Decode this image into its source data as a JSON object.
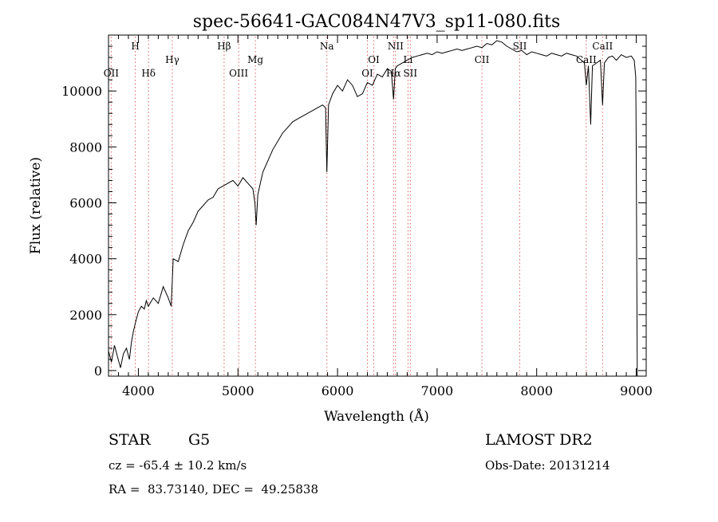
{
  "chart_data": {
    "type": "line",
    "title": "spec-56641-GAC084N47V3_sp11-080.fits",
    "xlabel": "Wavelength (Å)",
    "ylabel": "Flux (relative)",
    "xlim": [
      3700,
      9100
    ],
    "ylim": [
      -200,
      12000
    ],
    "x_ticks": [
      4000,
      5000,
      6000,
      7000,
      8000,
      9000
    ],
    "y_ticks": [
      0,
      2000,
      4000,
      6000,
      8000,
      10000
    ],
    "x_tick_labels": [
      "4000",
      "5000",
      "6000",
      "7000",
      "8000",
      "9000"
    ],
    "y_tick_labels": [
      "0",
      "2000",
      "4000",
      "6000",
      "8000",
      "10000"
    ],
    "grid": false,
    "series": [
      {
        "x": [
          3700,
          3730,
          3760,
          3790,
          3820,
          3850,
          3880,
          3910,
          3930,
          3950,
          3970,
          4000,
          4030,
          4060,
          4080,
          4100,
          4150,
          4200,
          4250,
          4300,
          4330,
          4350,
          4400,
          4450,
          4500,
          4550,
          4600,
          4650,
          4700,
          4750,
          4800,
          4850,
          4900,
          4950,
          5000,
          5050,
          5100,
          5150,
          5170,
          5183,
          5200,
          5250,
          5300,
          5350,
          5400,
          5450,
          5500,
          5550,
          5600,
          5650,
          5700,
          5750,
          5800,
          5850,
          5880,
          5893,
          5910,
          5950,
          6000,
          6050,
          6100,
          6150,
          6200,
          6250,
          6300,
          6350,
          6400,
          6450,
          6500,
          6540,
          6563,
          6580,
          6600,
          6650,
          6700,
          6750,
          6800,
          6850,
          6900,
          6950,
          7000,
          7050,
          7100,
          7150,
          7200,
          7250,
          7300,
          7350,
          7400,
          7450,
          7500,
          7550,
          7600,
          7650,
          7700,
          7750,
          7800,
          7850,
          7900,
          7950,
          8000,
          8050,
          8100,
          8150,
          8200,
          8250,
          8300,
          8350,
          8400,
          8450,
          8480,
          8498,
          8520,
          8542,
          8560,
          8600,
          8640,
          8662,
          8680,
          8720,
          8760,
          8800,
          8850,
          8900,
          8950,
          8980,
          8995,
          9000,
          9010
        ],
        "y": [
          700,
          300,
          900,
          500,
          100,
          600,
          800,
          400,
          1000,
          1400,
          1700,
          2100,
          2300,
          2200,
          2500,
          2300,
          2600,
          2400,
          3000,
          2600,
          2300,
          4000,
          3900,
          4500,
          5000,
          5300,
          5700,
          5900,
          6100,
          6200,
          6500,
          6600,
          6700,
          6800,
          6600,
          6900,
          6700,
          6500,
          6000,
          5200,
          6300,
          7100,
          7500,
          7900,
          8200,
          8500,
          8700,
          8900,
          9000,
          9100,
          9200,
          9300,
          9400,
          9500,
          9400,
          7100,
          9500,
          9900,
          10200,
          10000,
          10400,
          10200,
          9800,
          9900,
          10300,
          10200,
          10600,
          10500,
          10800,
          10700,
          9700,
          10800,
          10900,
          11000,
          11100,
          11200,
          11250,
          11300,
          11350,
          11300,
          11400,
          11350,
          11400,
          11450,
          11500,
          11450,
          11500,
          11550,
          11600,
          11550,
          11700,
          11650,
          11800,
          11750,
          11600,
          11500,
          11400,
          11450,
          11300,
          11400,
          11350,
          11300,
          11250,
          11350,
          11300,
          11250,
          11350,
          11300,
          11250,
          11100,
          11000,
          10200,
          10900,
          8800,
          10900,
          11000,
          11100,
          9500,
          11000,
          11200,
          11250,
          11100,
          11300,
          11200,
          11250,
          11100,
          10500,
          8000,
          -200
        ]
      }
    ],
    "spectral_lines": [
      {
        "label": "H",
        "wavelength": 3969,
        "level": "top"
      },
      {
        "label": "OII",
        "wavelength": 3727,
        "level": "low"
      },
      {
        "label": "Hδ",
        "wavelength": 4102,
        "level": "low"
      },
      {
        "label": "Hγ",
        "wavelength": 4341,
        "level": "mid"
      },
      {
        "label": "Hβ",
        "wavelength": 4861,
        "level": "top"
      },
      {
        "label": "OIII",
        "wavelength": 5007,
        "level": "low"
      },
      {
        "label": "Mg",
        "wavelength": 5175,
        "level": "mid"
      },
      {
        "label": "Na",
        "wavelength": 5893,
        "level": "top"
      },
      {
        "label": "OI",
        "wavelength": 6300,
        "level": "low"
      },
      {
        "label": "OI",
        "wavelength": 6364,
        "level": "mid"
      },
      {
        "label": "NII",
        "wavelength": 6583,
        "level": "top"
      },
      {
        "label": "Hα",
        "wavelength": 6563,
        "level": "low"
      },
      {
        "label": "Li",
        "wavelength": 6708,
        "level": "mid"
      },
      {
        "label": "SII",
        "wavelength": 6731,
        "level": "low"
      },
      {
        "label": "CII",
        "wavelength": 7450,
        "level": "mid"
      },
      {
        "label": "SII",
        "wavelength": 7830,
        "level": "top"
      },
      {
        "label": "CaII",
        "wavelength": 8498,
        "level": "mid"
      },
      {
        "label": "CaII",
        "wavelength": 8662,
        "level": "top"
      }
    ]
  },
  "info": {
    "object_class": "STAR",
    "subclass": "G5",
    "redshift": "cz = -65.4 ± 10.2 km/s",
    "coords": "RA =  83.73140, DEC =  49.25838",
    "survey": "LAMOST DR2",
    "obs_date": "Obs-Date: 20131214"
  },
  "colors": {
    "spectrum": "#000000",
    "line_markers": "#e06060",
    "axes": "#000000"
  }
}
